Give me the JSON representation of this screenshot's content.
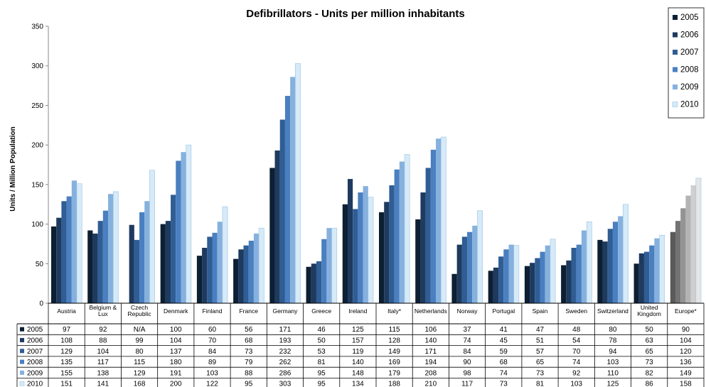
{
  "chart_data": {
    "type": "bar",
    "title": "Defibrillators -  Units per million inhabitants",
    "xlabel": "",
    "ylabel": "Units / Million Population",
    "ylim": [
      0,
      350
    ],
    "yticks": [
      "0",
      "50",
      "100",
      "150",
      "200",
      "250",
      "300",
      "350"
    ],
    "grid": false,
    "legend_position": "top-right",
    "categories": [
      [
        "Austria"
      ],
      [
        "Belgium &",
        "Lux"
      ],
      [
        "Czech",
        "Republic"
      ],
      [
        "Denmark"
      ],
      [
        "Finland"
      ],
      [
        "France"
      ],
      [
        "Germany"
      ],
      [
        "Greece"
      ],
      [
        "Ireland"
      ],
      [
        "Italy*"
      ],
      [
        "Netherlands"
      ],
      [
        "Norway"
      ],
      [
        "Portugal"
      ],
      [
        "Spain"
      ],
      [
        "Sweden"
      ],
      [
        "Switzerland"
      ],
      [
        "United",
        "Kingdom"
      ],
      [
        "Europe*"
      ]
    ],
    "series": [
      {
        "name": "2005",
        "color": "#0d1f33",
        "europe_color": "#5a5a5a",
        "values": [
          97,
          92,
          null,
          100,
          60,
          56,
          171,
          46,
          125,
          115,
          106,
          37,
          41,
          47,
          48,
          80,
          50,
          90
        ],
        "table": [
          "97",
          "92",
          "N/A",
          "100",
          "60",
          "56",
          "171",
          "46",
          "125",
          "115",
          "106",
          "37",
          "41",
          "47",
          "48",
          "80",
          "50",
          "90"
        ]
      },
      {
        "name": "2006",
        "color": "#1e3a5f",
        "europe_color": "#737373",
        "values": [
          108,
          88,
          99,
          104,
          70,
          68,
          193,
          50,
          157,
          128,
          140,
          74,
          45,
          51,
          54,
          78,
          63,
          104
        ],
        "table": [
          "108",
          "88",
          "99",
          "104",
          "70",
          "68",
          "193",
          "50",
          "157",
          "128",
          "140",
          "74",
          "45",
          "51",
          "54",
          "78",
          "63",
          "104"
        ]
      },
      {
        "name": "2007",
        "color": "#2f5d94",
        "europe_color": "#939393",
        "values": [
          129,
          104,
          80,
          137,
          84,
          73,
          232,
          53,
          119,
          149,
          171,
          84,
          59,
          57,
          70,
          94,
          65,
          120
        ],
        "table": [
          "129",
          "104",
          "80",
          "137",
          "84",
          "73",
          "232",
          "53",
          "119",
          "149",
          "171",
          "84",
          "59",
          "57",
          "70",
          "94",
          "65",
          "120"
        ]
      },
      {
        "name": "2008",
        "color": "#4a7fc0",
        "europe_color": "#b4b4b4",
        "values": [
          135,
          117,
          115,
          180,
          89,
          79,
          262,
          81,
          140,
          169,
          194,
          90,
          68,
          65,
          74,
          103,
          73,
          136
        ],
        "table": [
          "135",
          "117",
          "115",
          "180",
          "89",
          "79",
          "262",
          "81",
          "140",
          "169",
          "194",
          "90",
          "68",
          "65",
          "74",
          "103",
          "73",
          "136"
        ]
      },
      {
        "name": "2009",
        "color": "#86b1de",
        "europe_color": "#cfcfcf",
        "values": [
          155,
          138,
          129,
          191,
          103,
          88,
          286,
          95,
          148,
          179,
          208,
          98,
          74,
          73,
          92,
          110,
          82,
          149
        ],
        "table": [
          "155",
          "138",
          "129",
          "191",
          "103",
          "88",
          "286",
          "95",
          "148",
          "179",
          "208",
          "98",
          "74",
          "73",
          "92",
          "110",
          "82",
          "149"
        ]
      },
      {
        "name": "2010",
        "color": "#d6eaf8",
        "europe_color": "#e6e6e6",
        "values": [
          151,
          141,
          168,
          200,
          122,
          95,
          303,
          95,
          134,
          188,
          210,
          117,
          73,
          81,
          103,
          125,
          86,
          158
        ],
        "table": [
          "151",
          "141",
          "168",
          "200",
          "122",
          "95",
          "303",
          "95",
          "134",
          "188",
          "210",
          "117",
          "73",
          "81",
          "103",
          "125",
          "86",
          "158"
        ]
      }
    ]
  }
}
